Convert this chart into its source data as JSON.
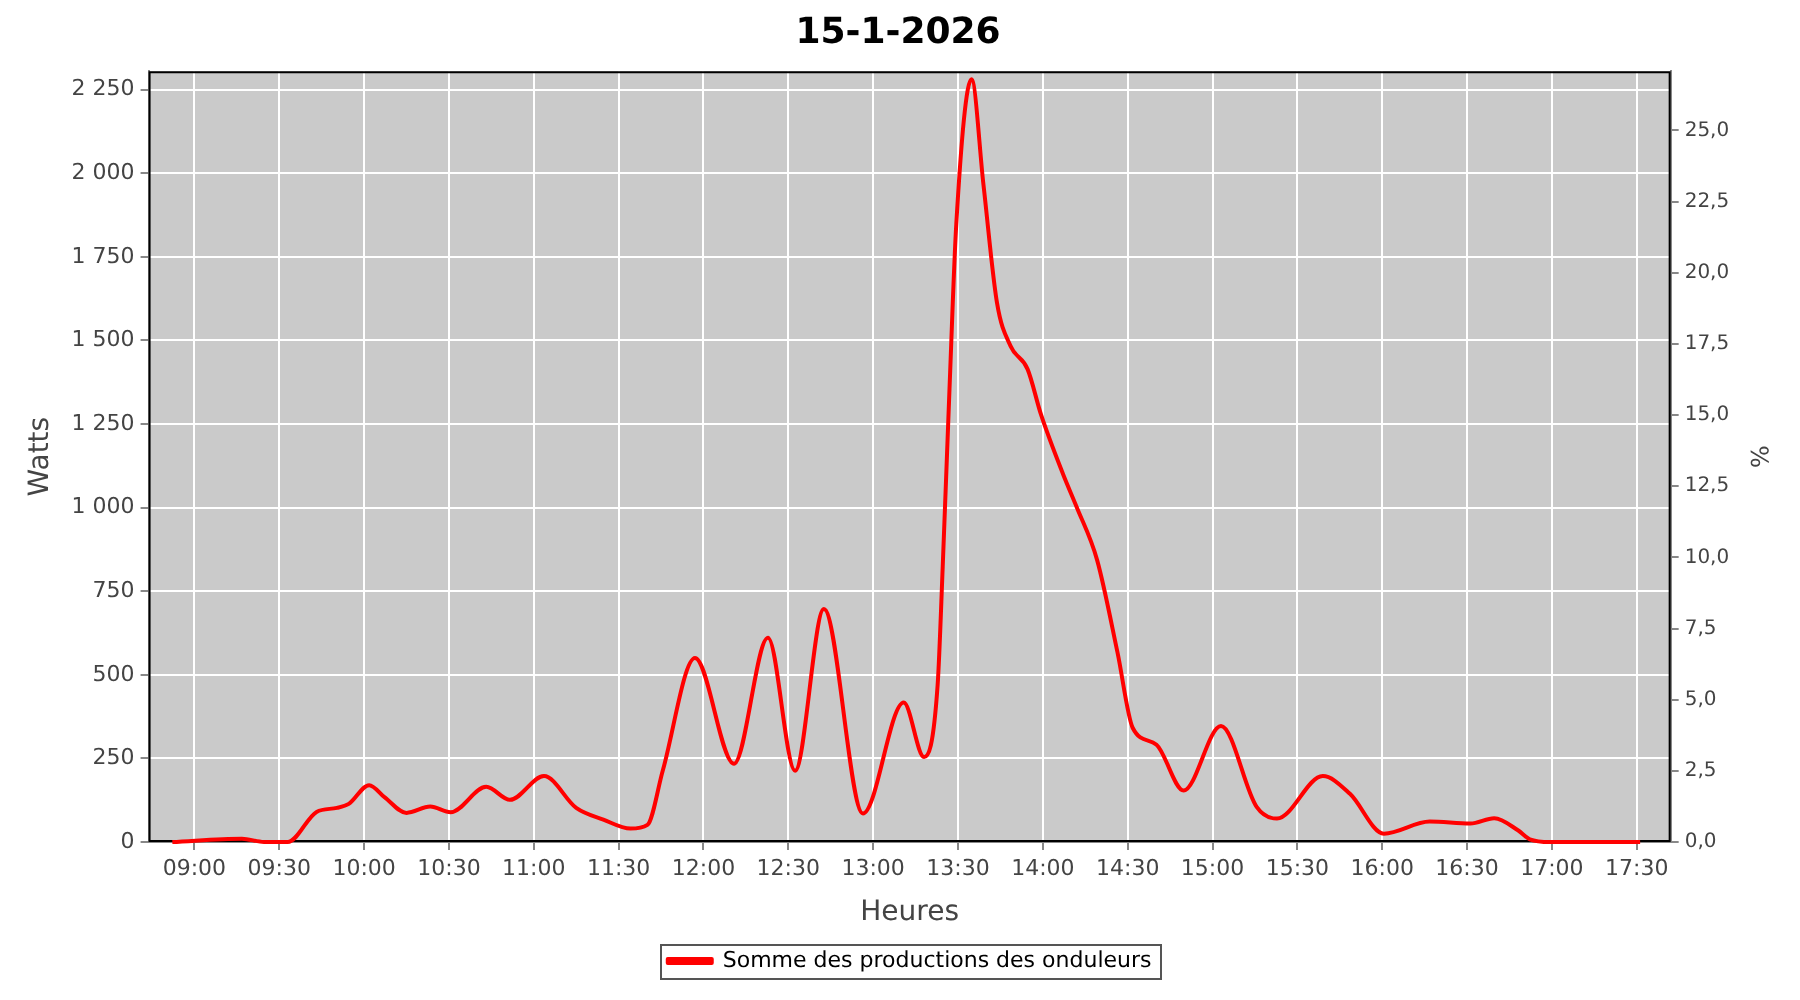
{
  "chart_data": {
    "type": "line",
    "title": "15-1-2026",
    "xlabel": "Heures",
    "ylabel": "Watts",
    "y2label": "%",
    "series": [
      {
        "name": "Somme des productions des onduleurs",
        "color": "#ff0000",
        "x": [
          8.87,
          9.28,
          9.41,
          9.55,
          9.72,
          9.84,
          9.91,
          10.03,
          10.12,
          10.25,
          10.39,
          10.51,
          10.72,
          10.86,
          11.06,
          11.25,
          11.41,
          11.57,
          11.67,
          11.76,
          11.95,
          12.18,
          12.38,
          12.54,
          12.71,
          12.94,
          13.18,
          13.3,
          13.38,
          13.41,
          13.45,
          13.49,
          13.58,
          13.65,
          13.73,
          13.81,
          13.91,
          13.99,
          14.12,
          14.2,
          14.32,
          14.44,
          14.53,
          14.67,
          14.83,
          15.05,
          15.26,
          15.38,
          15.65,
          15.81,
          16.01,
          16.28,
          16.52,
          16.66,
          16.8,
          16.87,
          16.99,
          17.52
        ],
        "values": [
          0,
          10,
          0,
          0,
          90,
          102,
          114,
          170,
          134,
          87,
          106,
          89,
          165,
          126,
          197,
          102,
          67,
          40,
          51,
          213,
          550,
          234,
          611,
          213,
          697,
          85,
          417,
          254,
          469,
          823,
          1355,
          1848,
          2281,
          1966,
          1612,
          1483,
          1414,
          1277,
          1099,
          1001,
          843,
          567,
          341,
          291,
          154,
          347,
          105,
          70,
          197,
          144,
          25,
          61,
          55,
          71,
          35,
          8,
          0,
          0
        ]
      }
    ],
    "xlim": [
      8.73,
      17.7
    ],
    "xticks": [
      {
        "value": 9,
        "label": "09:00"
      },
      {
        "value": 9.5,
        "label": "09:30"
      },
      {
        "value": 10,
        "label": "10:00"
      },
      {
        "value": 10.5,
        "label": "10:30"
      },
      {
        "value": 11,
        "label": "11:00"
      },
      {
        "value": 11.5,
        "label": "11:30"
      },
      {
        "value": 12,
        "label": "12:00"
      },
      {
        "value": 12.5,
        "label": "12:30"
      },
      {
        "value": 13,
        "label": "13:00"
      },
      {
        "value": 13.5,
        "label": "13:30"
      },
      {
        "value": 14,
        "label": "14:00"
      },
      {
        "value": 14.5,
        "label": "14:30"
      },
      {
        "value": 15,
        "label": "15:00"
      },
      {
        "value": 15.5,
        "label": "15:30"
      },
      {
        "value": 16,
        "label": "16:00"
      },
      {
        "value": 16.5,
        "label": "16:30"
      },
      {
        "value": 17,
        "label": "17:00"
      },
      {
        "value": 17.5,
        "label": "17:30"
      }
    ],
    "ylim": [
      0,
      2305
    ],
    "yticks": [
      0,
      250,
      500,
      750,
      {
        "value": 1000,
        "label": "1 000"
      },
      {
        "value": 1250,
        "label": "1 250"
      },
      {
        "value": 1500,
        "label": "1 500"
      },
      {
        "value": 1750,
        "label": "1 750"
      },
      {
        "value": 2000,
        "label": "2 000"
      },
      {
        "value": 2250,
        "label": "2 250"
      }
    ],
    "y2lim": [
      0,
      27.08
    ],
    "y2ticks": [
      {
        "value": 0,
        "label": "0,0"
      },
      {
        "value": 2.5,
        "label": "2,5"
      },
      {
        "value": 5,
        "label": "5,0"
      },
      {
        "value": 7.5,
        "label": "7,5"
      },
      {
        "value": 10,
        "label": "10,0"
      },
      {
        "value": 12.5,
        "label": "12,5"
      },
      {
        "value": 15,
        "label": "15,0"
      },
      {
        "value": 17.5,
        "label": "17,5"
      },
      {
        "value": 20,
        "label": "20,0"
      },
      {
        "value": 22.5,
        "label": "22,5"
      },
      {
        "value": 25,
        "label": "25,0"
      }
    ],
    "grid": true,
    "legend": "bottom",
    "marker": "none",
    "line_style": "solid"
  }
}
